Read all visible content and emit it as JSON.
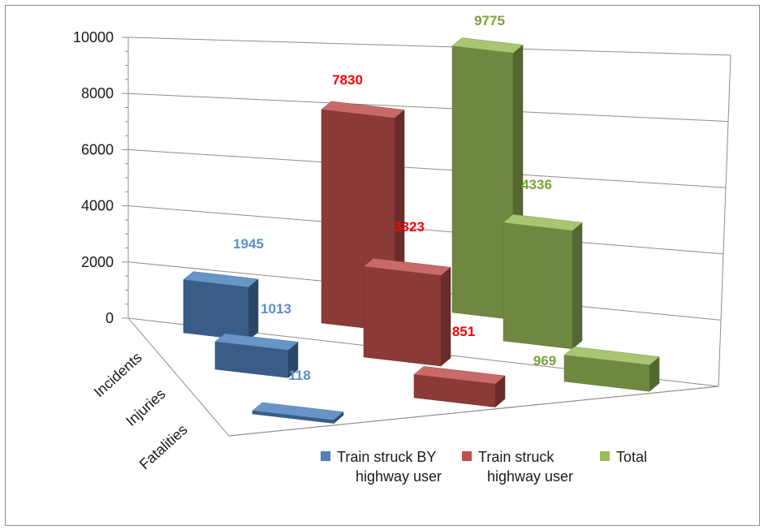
{
  "chart_data": {
    "type": "bar",
    "title": "",
    "xlabel": "",
    "ylabel": "",
    "ylim": [
      0,
      10000
    ],
    "y_ticks": [
      "0",
      "2000",
      "4000",
      "6000",
      "8000",
      "10000"
    ],
    "categories": [
      "Incidents",
      "Injuries",
      "Fatalities"
    ],
    "series": [
      {
        "name": "Train struck BY highway user",
        "legend_lines": [
          "Train struck BY",
          "highway user"
        ],
        "values": [
          1945,
          1013,
          118
        ],
        "labels": [
          "1945",
          "1013",
          "118"
        ],
        "color": "#4f81bd",
        "label_color": "#5b8fcd"
      },
      {
        "name": "Train struck highway user",
        "legend_lines": [
          "Train struck",
          "highway user"
        ],
        "values": [
          7830,
          3323,
          851
        ],
        "labels": [
          "7830",
          "3323",
          "851"
        ],
        "color": "#c0504d",
        "label_color": "#ff0000"
      },
      {
        "name": "Total",
        "legend_lines": [
          "Total"
        ],
        "values": [
          9775,
          4336,
          969
        ],
        "labels": [
          "9775",
          "4336",
          "969"
        ],
        "color": "#9bbb59",
        "label_color": "#77a33a"
      }
    ],
    "grid": true,
    "legend_position": "bottom",
    "projection": "3d-perspective"
  }
}
